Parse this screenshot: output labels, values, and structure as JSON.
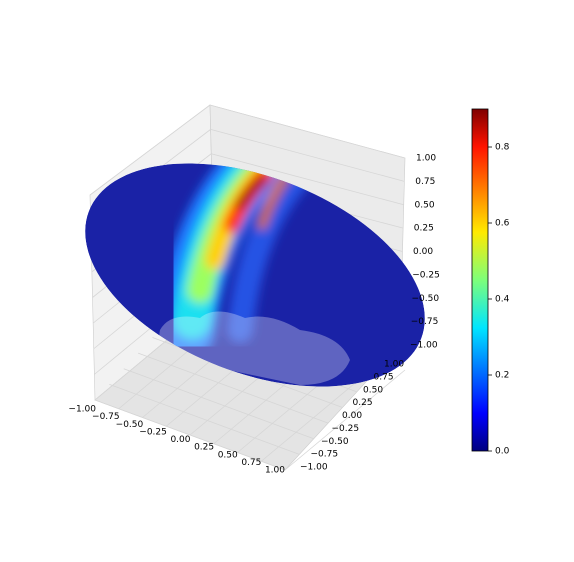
{
  "chart_data": {
    "type": "surface3d",
    "xticks": [
      {
        "value": -1,
        "label": "−1.00"
      },
      {
        "value": -0.75,
        "label": "−0.75"
      },
      {
        "value": -0.5,
        "label": "−0.50"
      },
      {
        "value": -0.25,
        "label": "−0.25"
      },
      {
        "value": 0,
        "label": "0.00"
      },
      {
        "value": 0.25,
        "label": "0.25"
      },
      {
        "value": 0.5,
        "label": "0.50"
      },
      {
        "value": 0.75,
        "label": "0.75"
      },
      {
        "value": 1,
        "label": "1.00"
      }
    ],
    "yticks": [
      {
        "value": -1,
        "label": "−1.00"
      },
      {
        "value": -0.75,
        "label": "−0.75"
      },
      {
        "value": -0.5,
        "label": "−0.50"
      },
      {
        "value": -0.25,
        "label": "−0.25"
      },
      {
        "value": 0,
        "label": "0.00"
      },
      {
        "value": 0.25,
        "label": "0.25"
      },
      {
        "value": 0.5,
        "label": "0.50"
      },
      {
        "value": 0.75,
        "label": "0.75"
      },
      {
        "value": 1,
        "label": "1.00"
      }
    ],
    "zticks": [
      {
        "value": -1,
        "label": "−1.00"
      },
      {
        "value": -0.75,
        "label": "−0.75"
      },
      {
        "value": -0.5,
        "label": "−0.50"
      },
      {
        "value": -0.25,
        "label": "−0.25"
      },
      {
        "value": 0,
        "label": "0.00"
      },
      {
        "value": 0.25,
        "label": "0.25"
      },
      {
        "value": 0.5,
        "label": "0.50"
      },
      {
        "value": 0.75,
        "label": "0.75"
      },
      {
        "value": 1,
        "label": "1.00"
      }
    ],
    "xlim": [
      -1,
      1
    ],
    "ylim": [
      -1,
      1
    ],
    "zlim": [
      -1,
      1
    ],
    "colormap": "jet",
    "colorbar_lim": [
      0,
      0.9
    ],
    "colorbar_ticks": [
      {
        "value": 0,
        "label": "0.0"
      },
      {
        "value": 0.2,
        "label": "0.2"
      },
      {
        "value": 0.4,
        "label": "0.4"
      },
      {
        "value": 0.6,
        "label": "0.6"
      },
      {
        "value": 0.8,
        "label": "0.8"
      }
    ]
  }
}
